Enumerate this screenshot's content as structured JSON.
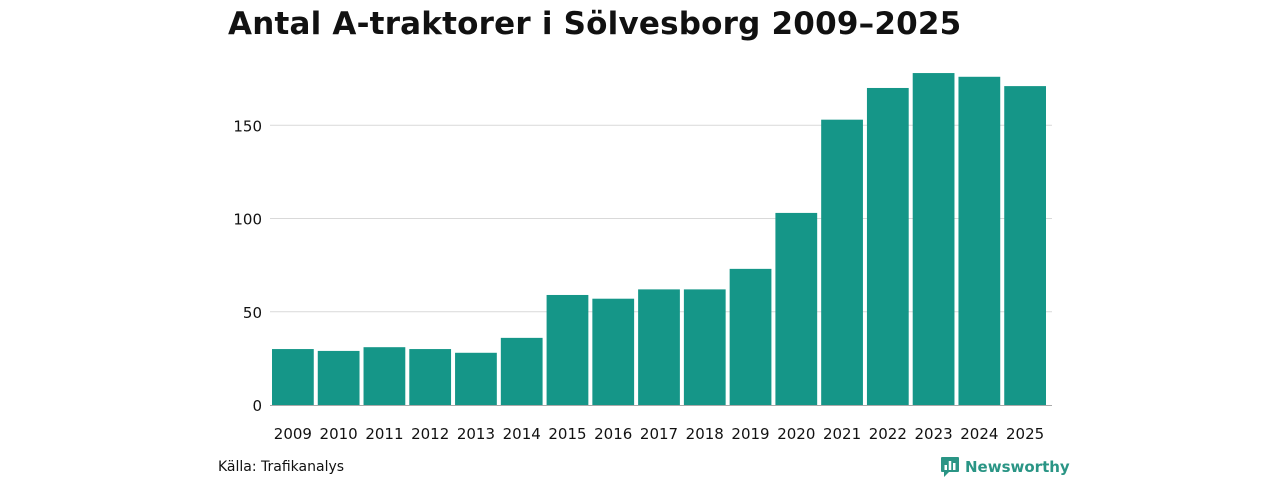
{
  "chart_data": {
    "type": "bar",
    "title": "Antal A-traktorer i Sölvesborg 2009–2025",
    "xlabel": "",
    "ylabel": "",
    "categories": [
      "2009",
      "2010",
      "2011",
      "2012",
      "2013",
      "2014",
      "2015",
      "2016",
      "2017",
      "2018",
      "2019",
      "2020",
      "2021",
      "2022",
      "2023",
      "2024",
      "2025"
    ],
    "values": [
      30,
      29,
      31,
      30,
      28,
      36,
      59,
      57,
      62,
      62,
      73,
      103,
      153,
      170,
      178,
      176,
      171
    ],
    "ylim": [
      0,
      185
    ],
    "yticks": [
      0,
      50,
      100,
      150
    ],
    "grid": true,
    "bar_color": "#159688",
    "grid_color": "#d9d9d9",
    "axis_color": "#aaaaaa"
  },
  "footer": {
    "source": "Källa: Trafikanalys",
    "brand": "Newsworthy",
    "brand_icon": "newsworthy-logo-icon",
    "brand_color": "#2a9585"
  }
}
